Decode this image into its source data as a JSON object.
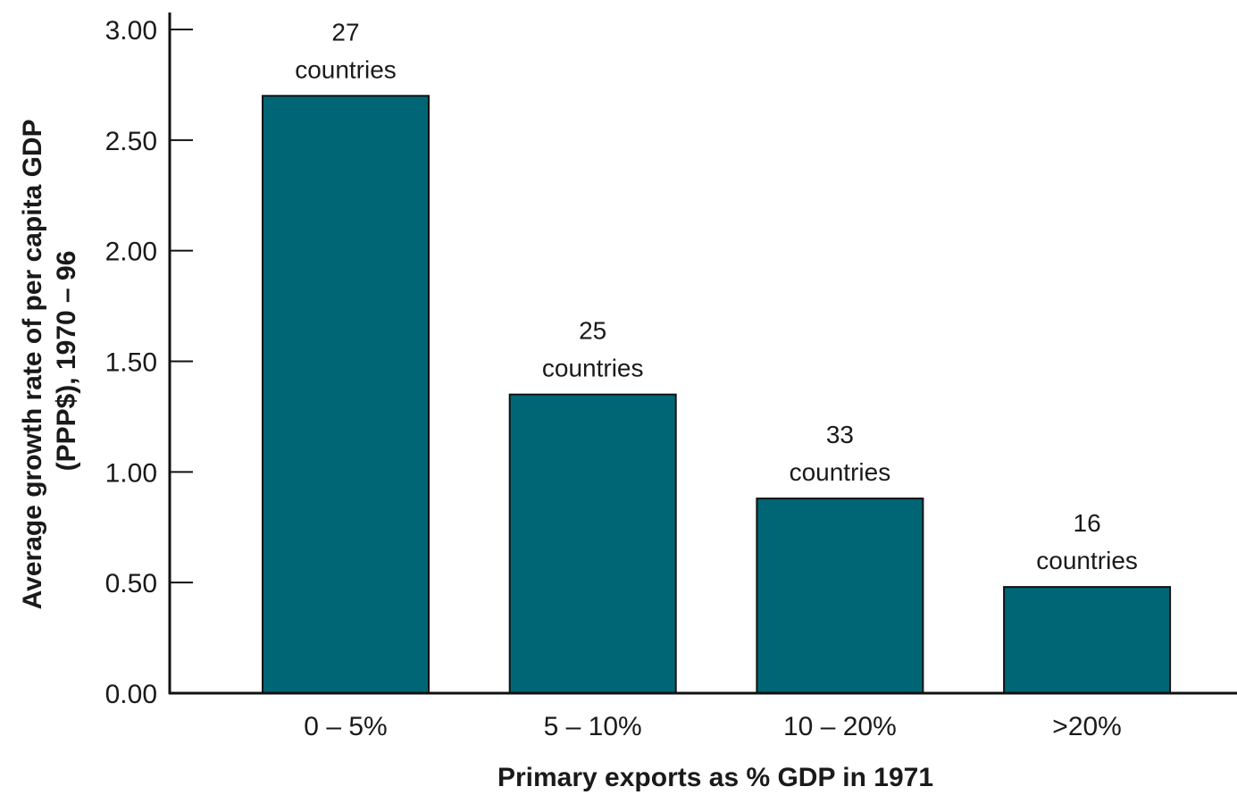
{
  "chart_data": {
    "type": "bar",
    "title": "",
    "categories": [
      "0 – 5%",
      "5 – 10%",
      "10 – 20%",
      ">20%"
    ],
    "values": [
      2.7,
      1.35,
      0.88,
      0.48
    ],
    "data_labels": [
      [
        "27",
        "countries"
      ],
      [
        "25",
        "countries"
      ],
      [
        "33",
        "countries"
      ],
      [
        "16",
        "countries"
      ]
    ],
    "yticks": [
      "0.00",
      "0.50",
      "1.00",
      "1.50",
      "2.00",
      "2.50",
      "3.00"
    ],
    "ytick_values": [
      0,
      0.5,
      1,
      1.5,
      2,
      2.5,
      3
    ],
    "ylim": [
      0,
      3
    ],
    "xlabel": "Primary exports as % GDP in 1971",
    "ylabel_lines": [
      "Average growth rate of per capita GDP",
      "(PPP$), 1970 – 96"
    ],
    "bar_color": "#006675",
    "grid": false,
    "legend": "none"
  }
}
